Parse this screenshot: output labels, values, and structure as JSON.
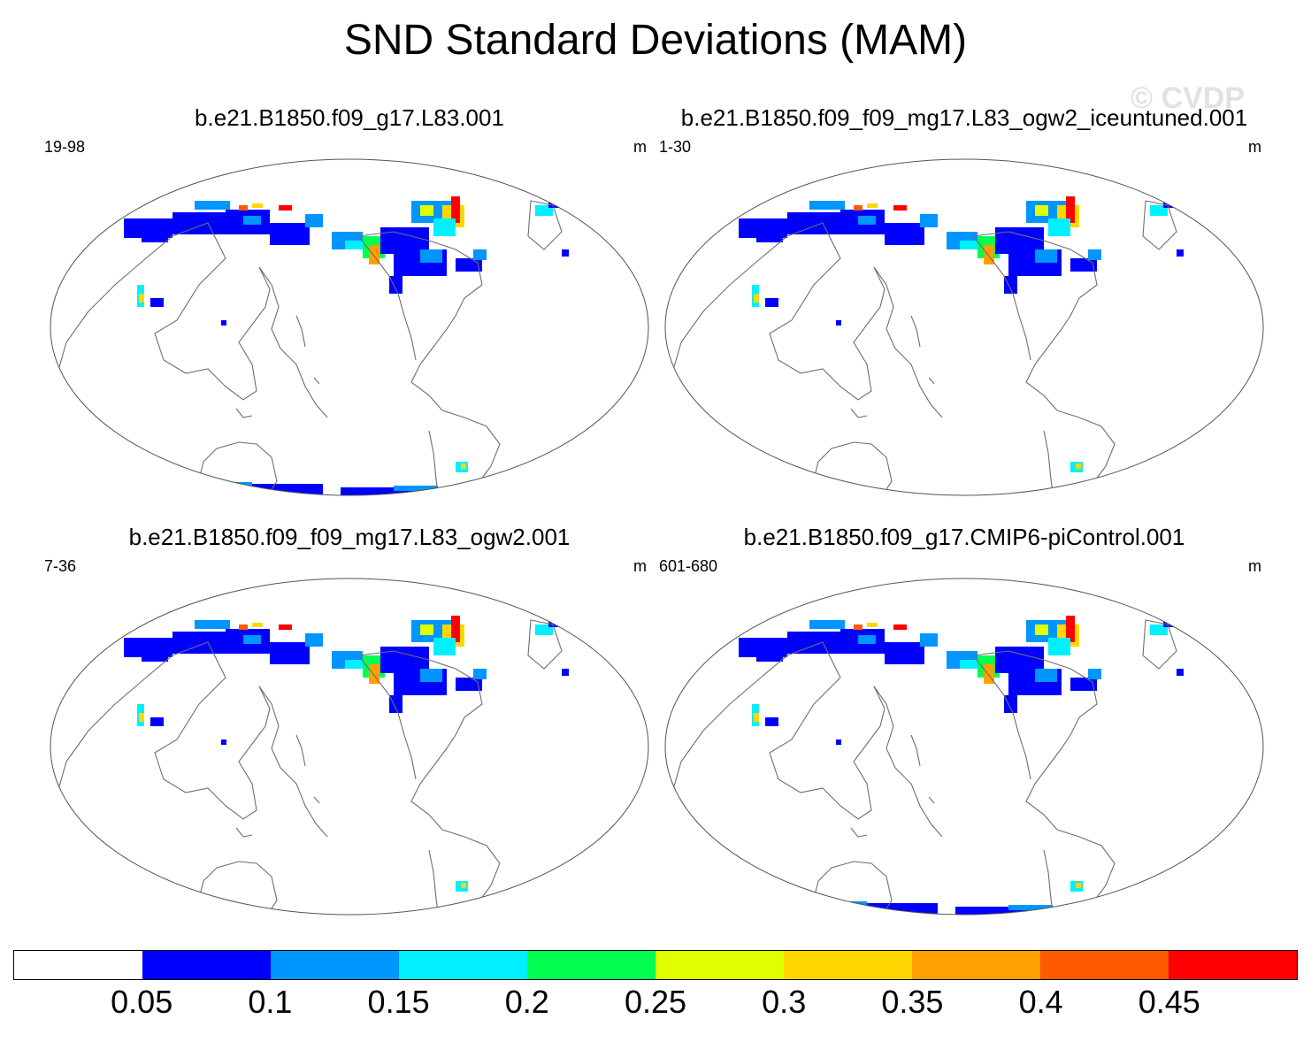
{
  "title": "SND Standard Deviations (MAM)",
  "watermark": "© CVDP",
  "panels": [
    {
      "title": "b.e21.B1850.f09_g17.L83.001",
      "years": "19-98",
      "units": "m",
      "southern_extent": "large"
    },
    {
      "title": "b.e21.B1850.f09_f09_mg17.L83_ogw2_iceuntuned.001",
      "years": "1-30",
      "units": "m",
      "southern_extent": "small"
    },
    {
      "title": "b.e21.B1850.f09_f09_mg17.L83_ogw2.001",
      "years": "7-36",
      "units": "m",
      "southern_extent": "small"
    },
    {
      "title": "b.e21.B1850.f09_g17.CMIP6-piControl.001",
      "years": "601-680",
      "units": "m",
      "southern_extent": "large"
    }
  ],
  "colorbar": {
    "colors": [
      "#ffffff",
      "#0000ff",
      "#0096ff",
      "#00f0ff",
      "#00ff50",
      "#e0ff00",
      "#ffd700",
      "#ffa000",
      "#ff5a00",
      "#ff0000"
    ],
    "labels": [
      "0.05",
      "0.1",
      "0.15",
      "0.2",
      "0.25",
      "0.3",
      "0.35",
      "0.4",
      "0.45"
    ]
  }
}
